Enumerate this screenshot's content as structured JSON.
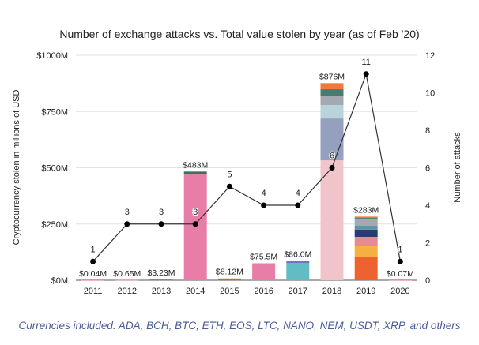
{
  "chart_data": {
    "type": "bar",
    "title": "Number of exchange attacks vs. Total value stolen by year (as of Feb '20)",
    "ylabel": "Cryptocurrency stolen in millions of USD",
    "y2label": "Number of attacks",
    "ylim": [
      0,
      1000
    ],
    "y2lim": [
      0,
      12
    ],
    "yticks": [
      "$0M",
      "$250M",
      "$500M",
      "$750M",
      "$1000M"
    ],
    "y2ticks": [
      "0",
      "2",
      "4",
      "6",
      "8",
      "10",
      "12"
    ],
    "grid": true,
    "categories": [
      "2011",
      "2012",
      "2013",
      "2014",
      "2015",
      "2016",
      "2017",
      "2018",
      "2019",
      "2020"
    ],
    "totals": [
      0.04,
      0.65,
      3.23,
      483,
      8.12,
      75.5,
      86.0,
      876,
      283,
      0.07
    ],
    "total_labels": [
      "$0.04M",
      "$0.65M",
      "$3.23M",
      "$483M",
      "$8.12M",
      "$75.5M",
      "$86.0M",
      "$876M",
      "$283M",
      "$0.07M"
    ],
    "stacks": [
      [
        {
          "v": 0.04,
          "c": "#e87ea8"
        }
      ],
      [
        {
          "v": 0.65,
          "c": "#e87ea8"
        }
      ],
      [
        {
          "v": 3.23,
          "c": "#6a78b8"
        }
      ],
      [
        {
          "v": 470,
          "c": "#e87ea8"
        },
        {
          "v": 13,
          "c": "#3e6e5e"
        }
      ],
      [
        {
          "v": 6,
          "c": "#5a9a4a"
        },
        {
          "v": 2.12,
          "c": "#e89a50"
        }
      ],
      [
        {
          "v": 75.5,
          "c": "#e87ea8"
        }
      ],
      [
        {
          "v": 78,
          "c": "#62bcc4"
        },
        {
          "v": 4,
          "c": "#4a5ab8"
        },
        {
          "v": 4,
          "c": "#a05aa8"
        }
      ],
      [
        {
          "v": 533,
          "c": "#f0c4c8"
        },
        {
          "v": 186,
          "c": "#959fc0"
        },
        {
          "v": 60,
          "c": "#b8d4da"
        },
        {
          "v": 39,
          "c": "#a3a9b0"
        },
        {
          "v": 31,
          "c": "#4e7a6e"
        },
        {
          "v": 27,
          "c": "#f07a3a"
        }
      ],
      [
        {
          "v": 102,
          "c": "#ee6230"
        },
        {
          "v": 49,
          "c": "#f4b040"
        },
        {
          "v": 42,
          "c": "#e88a94"
        },
        {
          "v": 32,
          "c": "#2c3a70"
        },
        {
          "v": 17,
          "c": "#5a96a6"
        },
        {
          "v": 28,
          "c": "#a3a9b0"
        },
        {
          "v": 7,
          "c": "#4e7a6e"
        },
        {
          "v": 6,
          "c": "#f07a3a"
        }
      ],
      [
        {
          "v": 0.07,
          "c": "#e87ea8"
        }
      ]
    ],
    "series": [
      {
        "name": "Number of attacks",
        "type": "line",
        "values": [
          1,
          3,
          3,
          3,
          5,
          4,
          4,
          6,
          11,
          1
        ]
      }
    ]
  },
  "footer": "Currencies included: ADA, BCH, BTC, ETH, EOS, LTC, NANO, NEM, USDT, XRP, and others"
}
